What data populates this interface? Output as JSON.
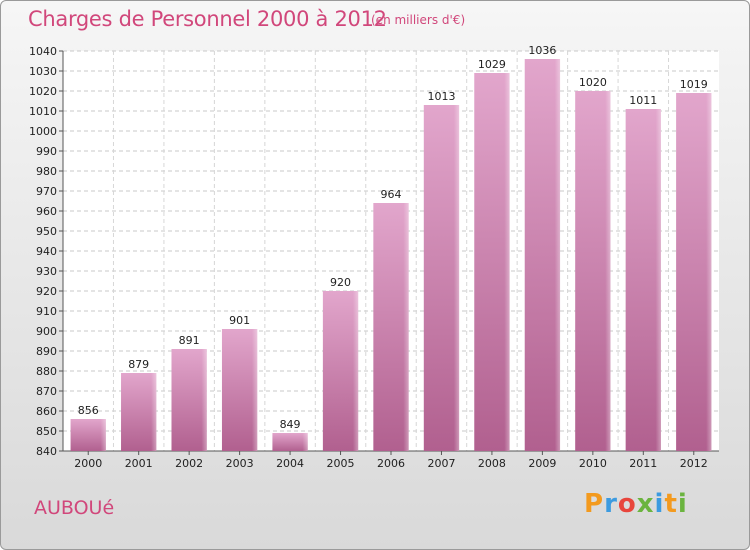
{
  "header": {
    "title": "Charges de Personnel 2000 à 2012",
    "subtitle": "(en milliers d'€)"
  },
  "footer": {
    "place": "AUBOUé",
    "logo": "Proxiti"
  },
  "chart_data": {
    "type": "bar",
    "title": "Charges de Personnel 2000 à 2012",
    "subtitle": "(en milliers d'€)",
    "categories": [
      "2000",
      "2001",
      "2002",
      "2003",
      "2004",
      "2005",
      "2006",
      "2007",
      "2008",
      "2009",
      "2010",
      "2011",
      "2012"
    ],
    "values": [
      856,
      879,
      891,
      901,
      849,
      920,
      964,
      1013,
      1029,
      1036,
      1020,
      1011,
      1019
    ],
    "ylim": [
      840,
      1040
    ],
    "ytick_step": 10,
    "grid": true,
    "bar_color": "#d88fb8",
    "xlabel": "",
    "ylabel": ""
  }
}
